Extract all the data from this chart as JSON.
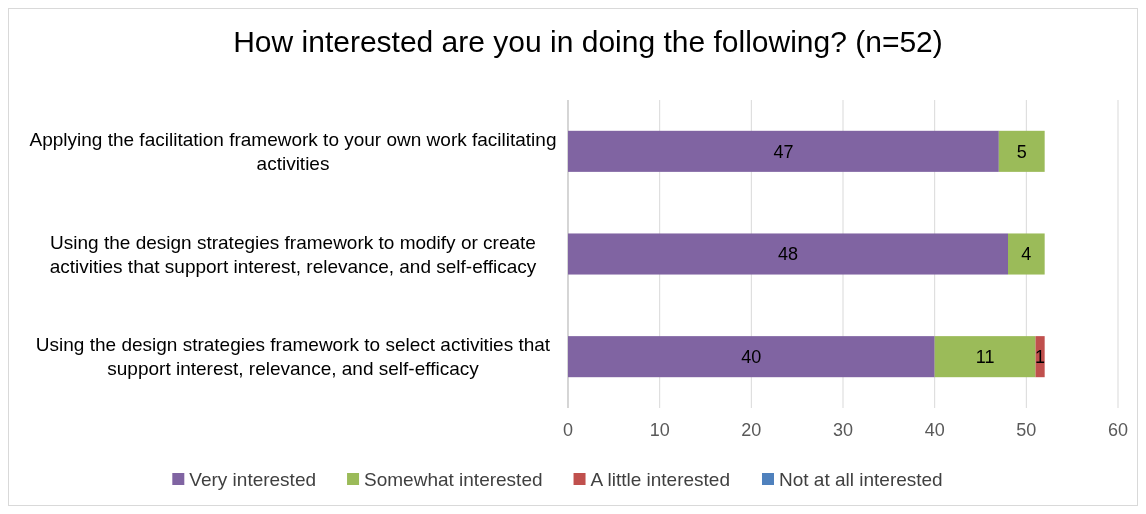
{
  "chart_data": {
    "type": "bar",
    "orientation": "horizontal",
    "stacked": true,
    "title": "How interested are you in doing the following? (n=52)",
    "categories": [
      "Applying the facilitation framework to your own work facilitating activities",
      "Using the design strategies framework to modify or create activities that support interest, relevance, and self-efficacy",
      "Using the design strategies framework to select activities that support interest, relevance, and self-efficacy"
    ],
    "series": [
      {
        "name": "Very interested",
        "color": "#8064a2",
        "values": [
          47,
          48,
          40
        ],
        "value_labels": [
          "47",
          "48",
          "40"
        ]
      },
      {
        "name": "Somewhat interested",
        "color": "#9bbb59",
        "values": [
          5,
          4,
          11
        ],
        "value_labels": [
          "5",
          "4",
          "11"
        ]
      },
      {
        "name": "A little interested",
        "color": "#c0504d",
        "values": [
          0,
          0,
          1
        ],
        "value_labels": [
          null,
          null,
          "1"
        ]
      },
      {
        "name": "Not at all interested",
        "color": "#4f81bd",
        "values": [
          0,
          0,
          0
        ],
        "value_labels": [
          null,
          null,
          null
        ]
      }
    ],
    "xlim": [
      0,
      60
    ],
    "xticks": [
      0,
      10,
      20,
      30,
      40,
      50,
      60
    ],
    "grid": "x",
    "legend": "bottom"
  }
}
